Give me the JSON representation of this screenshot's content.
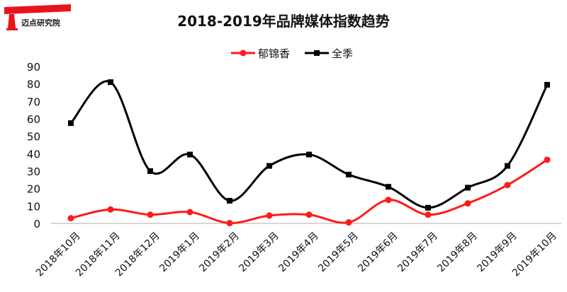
{
  "logo": {
    "text": "迈点研究院",
    "color": "#e8141b"
  },
  "chart_data": {
    "type": "line",
    "title": "2018-2019年品牌媒体指数趋势",
    "xlabel": "",
    "ylabel": "",
    "categories": [
      "2018年10月",
      "2018年11月",
      "2018年12月",
      "2019年1月",
      "2019年2月",
      "2019年3月",
      "2019年4月",
      "2019年5月",
      "2019年6月",
      "2019年7月",
      "2019年8月",
      "2019年9月",
      "2019年10月"
    ],
    "series": [
      {
        "name": "郁锦香",
        "color": "#ff1a1a",
        "marker": "circle",
        "values": [
          3,
          8,
          5,
          6.5,
          0.2,
          4.5,
          5,
          0.6,
          13.5,
          5,
          11.5,
          22,
          36.5
        ]
      },
      {
        "name": "全季",
        "color": "#000000",
        "marker": "square",
        "values": [
          57.5,
          81,
          30,
          39.5,
          13,
          33,
          39.5,
          28,
          21,
          9,
          20.5,
          33,
          79.5
        ]
      }
    ],
    "ylim": [
      0,
      90
    ],
    "yticks": [
      0,
      10,
      20,
      30,
      40,
      50,
      60,
      70,
      80,
      90
    ],
    "grid": false,
    "smooth": true,
    "legend_position": "top-center"
  }
}
